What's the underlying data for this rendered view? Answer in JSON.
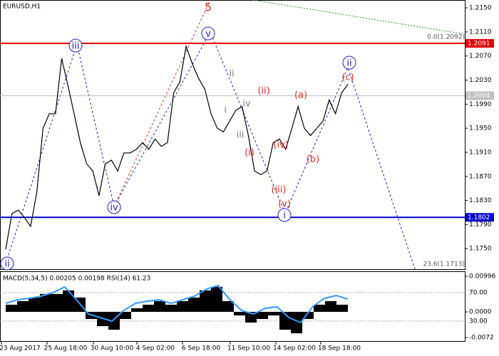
{
  "chart_data": {
    "type": "line",
    "title": "EURUSD,H1",
    "series": [
      {
        "name": "EURUSD",
        "color": "#000000",
        "values": [
          1.1749,
          1.1808,
          1.1814,
          1.1802,
          1.1787,
          1.1844,
          1.195,
          1.1974,
          1.1974,
          1.2066,
          1.2021,
          1.1974,
          1.1926,
          1.1891,
          1.1879,
          1.1838,
          1.1891,
          1.1897,
          1.1879,
          1.1909,
          1.1909,
          1.1915,
          1.1926,
          1.1915,
          1.1932,
          1.192,
          1.1926,
          1.2009,
          1.2027,
          1.2086,
          1.2057,
          1.2033,
          1.2015,
          1.1974,
          1.195,
          1.1944,
          1.1962,
          1.198,
          1.1986,
          1.1938,
          1.1879,
          1.1873,
          1.1879,
          1.1926,
          1.1932,
          1.1915,
          1.195,
          1.1986,
          1.195,
          1.1938,
          1.195,
          1.1962,
          1.1997,
          1.1974,
          1.2009,
          1.2023
        ]
      }
    ],
    "ylim": [
      1.1716,
      1.2163
    ],
    "yticks": [
      {
        "value": 1.215,
        "label": "1.2150"
      },
      {
        "value": 1.211,
        "label": "1.2110"
      },
      {
        "value": 1.207,
        "label": "1.2070"
      },
      {
        "value": 1.203,
        "label": "1.2030"
      },
      {
        "value": 1.199,
        "label": "1.1990"
      },
      {
        "value": 1.195,
        "label": "1.1950"
      },
      {
        "value": 1.191,
        "label": "1.1910"
      },
      {
        "value": 1.187,
        "label": "1.1870"
      },
      {
        "value": 1.183,
        "label": "1.1830"
      },
      {
        "value": 1.179,
        "label": "1.1790"
      },
      {
        "value": 1.175,
        "label": "1.1750"
      }
    ],
    "levels": [
      {
        "value": 1.2091,
        "label": "1.2091",
        "color": "#e00000"
      },
      {
        "value": 1.2004,
        "label": "1.2004",
        "color": "#c0c0c0"
      },
      {
        "value": 1.1802,
        "label": "1.1802",
        "color": "#0000cc"
      }
    ],
    "annotations": [
      "0.0(1.2092)",
      "23.6(1.1713)"
    ],
    "wave_labels": [
      {
        "text": "5",
        "color": "#c0392b"
      },
      {
        "text": "iii",
        "color": "#2020c0"
      },
      {
        "text": "v",
        "color": "#2020c0"
      },
      {
        "text": "iv",
        "color": "#2020c0"
      },
      {
        "text": "i",
        "color": "#2020c0"
      },
      {
        "text": "ii",
        "color": "#2020c0"
      },
      {
        "text": "ii",
        "color": "#2020c0"
      },
      {
        "text": "(c)",
        "color": "#e03020"
      },
      {
        "text": "ii",
        "color": "#808080"
      },
      {
        "text": "i",
        "color": "#808080"
      },
      {
        "text": "iv",
        "color": "#808080"
      },
      {
        "text": "iii",
        "color": "#808080"
      },
      {
        "text": "(i)",
        "color": "#e03020"
      },
      {
        "text": "(ii)",
        "color": "#e03020"
      },
      {
        "text": "(iii)",
        "color": "#e03020"
      },
      {
        "text": "(iv)",
        "color": "#e03020"
      },
      {
        "text": "(v)",
        "color": "#e03020"
      },
      {
        "text": "(a)",
        "color": "#e03020"
      },
      {
        "text": "(b)",
        "color": "#e03020"
      }
    ],
    "xtick_labels": [
      "23 Aug 2017",
      "25 Aug 18:00",
      "30 Aug 10:00",
      "4 Sep 02:00",
      "6 Sep 18:00",
      "11 Sep 10:00",
      "14 Sep 02:00",
      "18 Sep 18:00"
    ],
    "indicator": {
      "title": "MACD(5,34,5) 0.00205 0.00198 RSI(14) 61.23",
      "macd": {
        "color": "#000000",
        "values": [
          0.002,
          0.003,
          0.004,
          0.005,
          0.005,
          0.006,
          0.004,
          -0.002,
          -0.004,
          -0.005,
          -0.002,
          0.001,
          0.002,
          0.003,
          0.002,
          0.003,
          0.004,
          0.006,
          0.007,
          0.003,
          -0.001,
          -0.003,
          -0.002,
          -0.001,
          -0.005,
          -0.006,
          -0.002,
          0.002,
          0.003,
          0.002
        ]
      },
      "rsi": {
        "color": "#3399ff",
        "values": [
          55,
          60,
          62,
          65,
          70,
          78,
          60,
          40,
          35,
          30,
          45,
          55,
          58,
          60,
          55,
          60,
          65,
          75,
          80,
          60,
          45,
          40,
          48,
          50,
          35,
          28,
          50,
          62,
          66,
          61
        ]
      },
      "macd_ylim": [
        -0.00837,
        0.01135
      ],
      "macd_ticks": [
        {
          "value": 0.00996,
          "label": "0.00996"
        },
        {
          "value": 0,
          "label": "0.0000"
        },
        {
          "value": -0.0072,
          "label": "-0.0072"
        }
      ],
      "rsi_ylim": [
        1,
        100
      ],
      "rsi_ticks": [
        {
          "value": 70,
          "label": "70.00"
        },
        {
          "value": 30,
          "label": "30.00"
        }
      ]
    }
  }
}
